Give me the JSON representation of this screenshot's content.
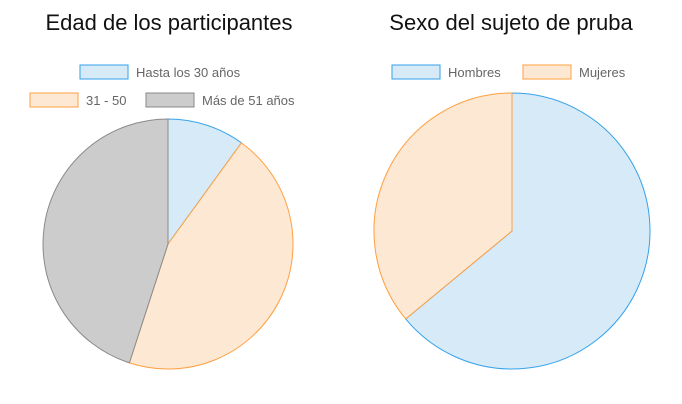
{
  "chart_data": [
    {
      "type": "pie",
      "title": "Edad de los participantes",
      "categories": [
        "Hasta los 30 años",
        "31 - 50",
        "Más de 51 años"
      ],
      "values": [
        10,
        45,
        45
      ],
      "colors": {
        "fill": [
          "#d6eaf8",
          "#fde8d4",
          "#cccccc"
        ],
        "stroke": [
          "#36a2eb",
          "#ff9f40",
          "#8a8a8a"
        ]
      },
      "legend_position": "top"
    },
    {
      "type": "pie",
      "title": "Sexo del sujeto de pruba",
      "categories": [
        "Hombres",
        "Mujeres"
      ],
      "values": [
        64,
        36
      ],
      "colors": {
        "fill": [
          "#d6eaf8",
          "#fde8d4"
        ],
        "stroke": [
          "#36a2eb",
          "#ff9f40"
        ]
      },
      "legend_position": "top"
    }
  ]
}
